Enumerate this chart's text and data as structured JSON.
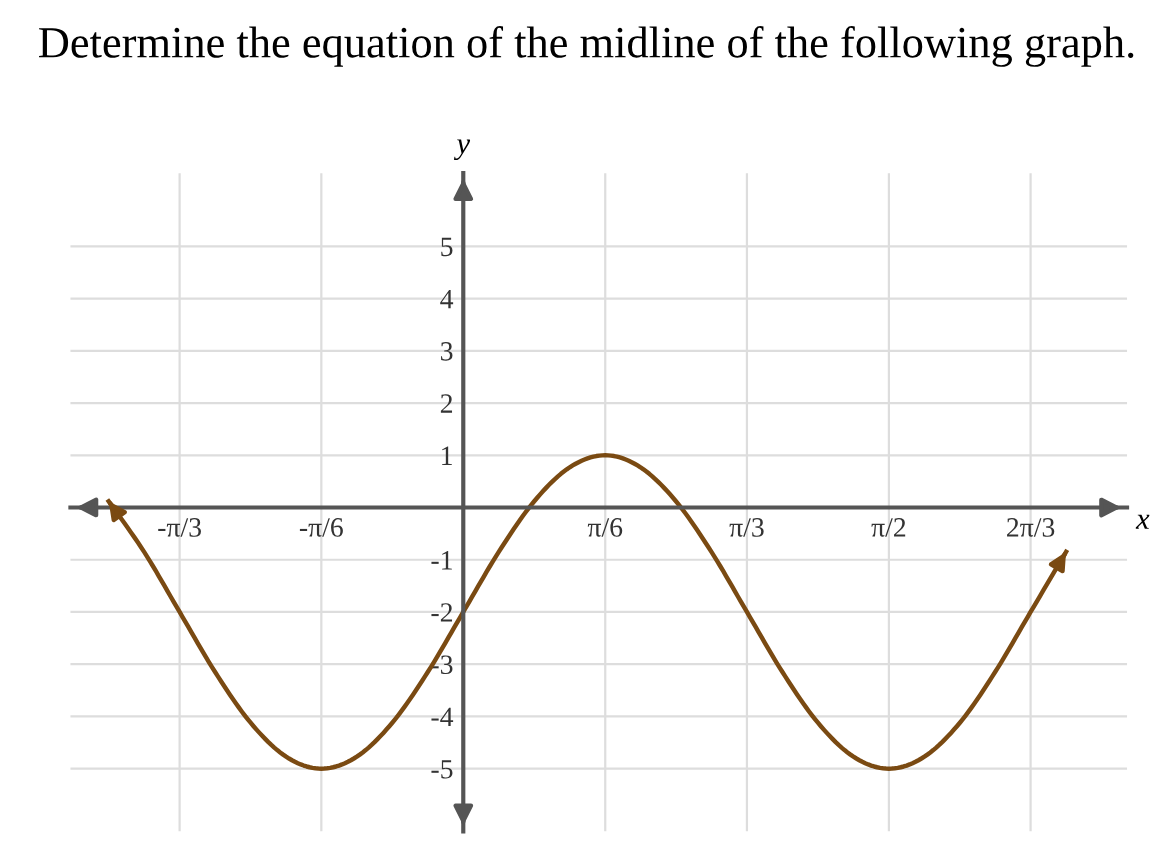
{
  "chart_data": {
    "type": "line",
    "title": "Determine the equation of the midline of the following graph.",
    "xlabel": "x",
    "ylabel": "y",
    "series": [
      {
        "color": "#7a4a12",
        "x": [
          -1.309,
          -1.178,
          -1.047,
          -0.916,
          -0.785,
          -0.654,
          -0.524,
          -0.393,
          -0.262,
          -0.131,
          0,
          0.131,
          0.262,
          0.393,
          0.524,
          0.654,
          0.785,
          0.916,
          1.047,
          1.178,
          1.309,
          1.44,
          1.571,
          1.702,
          1.833,
          1.963,
          2.094,
          2.225
        ],
        "values": [
          0.12,
          -0.85,
          -2,
          -3.15,
          -4.12,
          -4.77,
          -5,
          -4.77,
          -4.12,
          -3.15,
          -2,
          -0.85,
          0.12,
          0.77,
          1,
          0.77,
          0.12,
          -0.85,
          -2,
          -3.15,
          -4.12,
          -4.77,
          -5,
          -4.77,
          -4.12,
          -3.15,
          -2,
          -0.85
        ]
      }
    ],
    "xlim": [
      -1.45,
      2.45
    ],
    "ylim": [
      -6.2,
      6.4
    ],
    "xticks": [
      {
        "value": -1.047,
        "label": "-π/3"
      },
      {
        "value": -0.524,
        "label": "-π/6"
      },
      {
        "value": 0.524,
        "label": "π/6"
      },
      {
        "value": 1.047,
        "label": "π/3"
      },
      {
        "value": 1.571,
        "label": "π/2"
      },
      {
        "value": 2.094,
        "label": "2π/3"
      }
    ],
    "yticks": [
      -5,
      -4,
      -3,
      -2,
      -1,
      1,
      2,
      3,
      4,
      5
    ],
    "grid": true,
    "marker": "none",
    "line_style": "solid"
  }
}
